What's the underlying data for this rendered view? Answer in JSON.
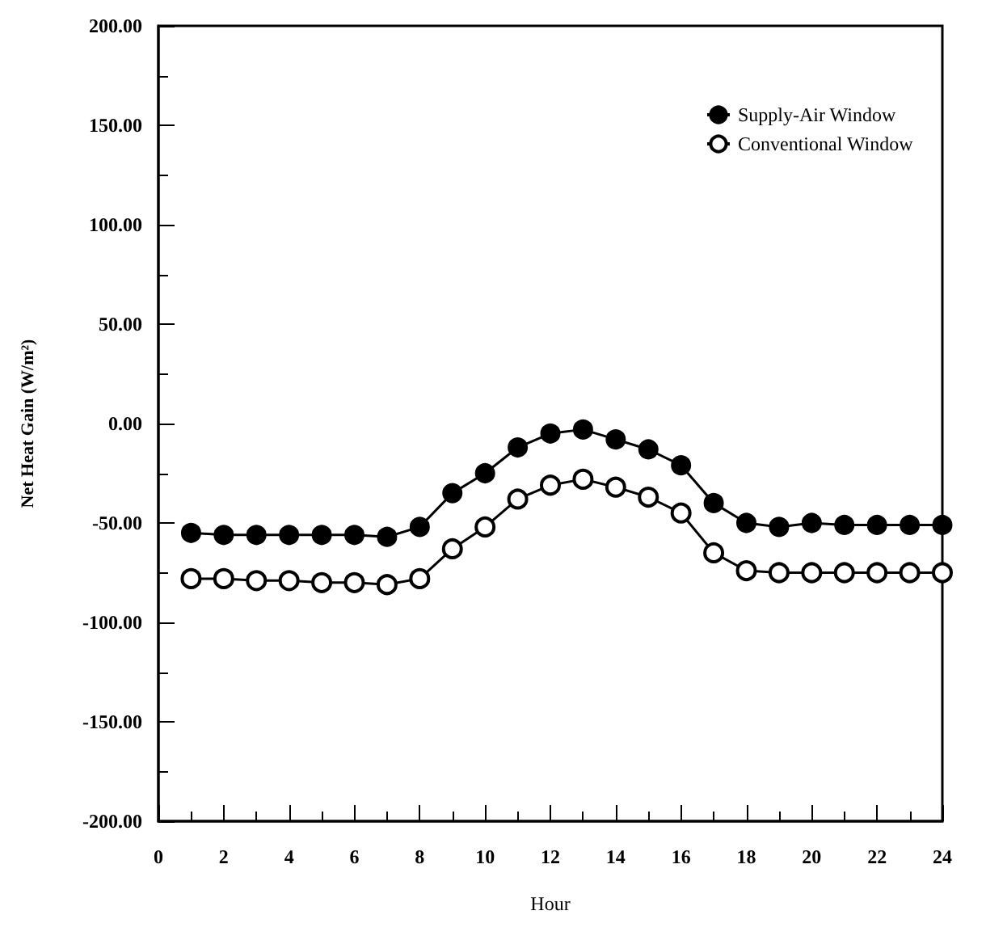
{
  "chart_data": {
    "type": "line",
    "xlabel": "Hour",
    "ylabel": "Net Heat Gain (W/m²)",
    "x": [
      1,
      2,
      3,
      4,
      5,
      6,
      7,
      8,
      9,
      10,
      11,
      12,
      13,
      14,
      15,
      16,
      17,
      18,
      19,
      20,
      21,
      22,
      23,
      24
    ],
    "series": [
      {
        "name": "Supply-Air Window",
        "color": "#000000",
        "marker": "circle",
        "values": [
          -55,
          -56,
          -56,
          -56,
          -56,
          -56,
          -57,
          -52,
          -35,
          -25,
          -12,
          -5,
          -3,
          -8,
          -13,
          -21,
          -40,
          -50,
          -52,
          -50,
          -51,
          -51,
          -51,
          -51
        ]
      },
      {
        "name": "Conventional Window",
        "color": "#000000",
        "marker": "emptyCircle",
        "values": [
          -78,
          -78,
          -79,
          -79,
          -80,
          -80,
          -81,
          -78,
          -63,
          -52,
          -38,
          -31,
          -28,
          -32,
          -37,
          -45,
          -65,
          -74,
          -75,
          -75,
          -75,
          -75,
          -75,
          -75
        ]
      }
    ],
    "xlim": [
      0,
      24
    ],
    "xticks": [
      0,
      2,
      4,
      6,
      8,
      10,
      12,
      14,
      16,
      18,
      20,
      22,
      24
    ],
    "ylim": [
      -200,
      200
    ],
    "yticks": [
      {
        "value": -200,
        "label": "-200.00"
      },
      {
        "value": -150,
        "label": "-150.00"
      },
      {
        "value": -100,
        "label": "-100.00"
      },
      {
        "value": -50,
        "label": "-50.00"
      },
      {
        "value": 0,
        "label": "0.00"
      },
      {
        "value": 50,
        "label": "50.00"
      },
      {
        "value": 100,
        "label": "100.00"
      },
      {
        "value": 150,
        "label": "150.00"
      },
      {
        "value": 200,
        "label": "200.00"
      }
    ],
    "grid": false,
    "legend": "top right",
    "line_style": "solid"
  }
}
